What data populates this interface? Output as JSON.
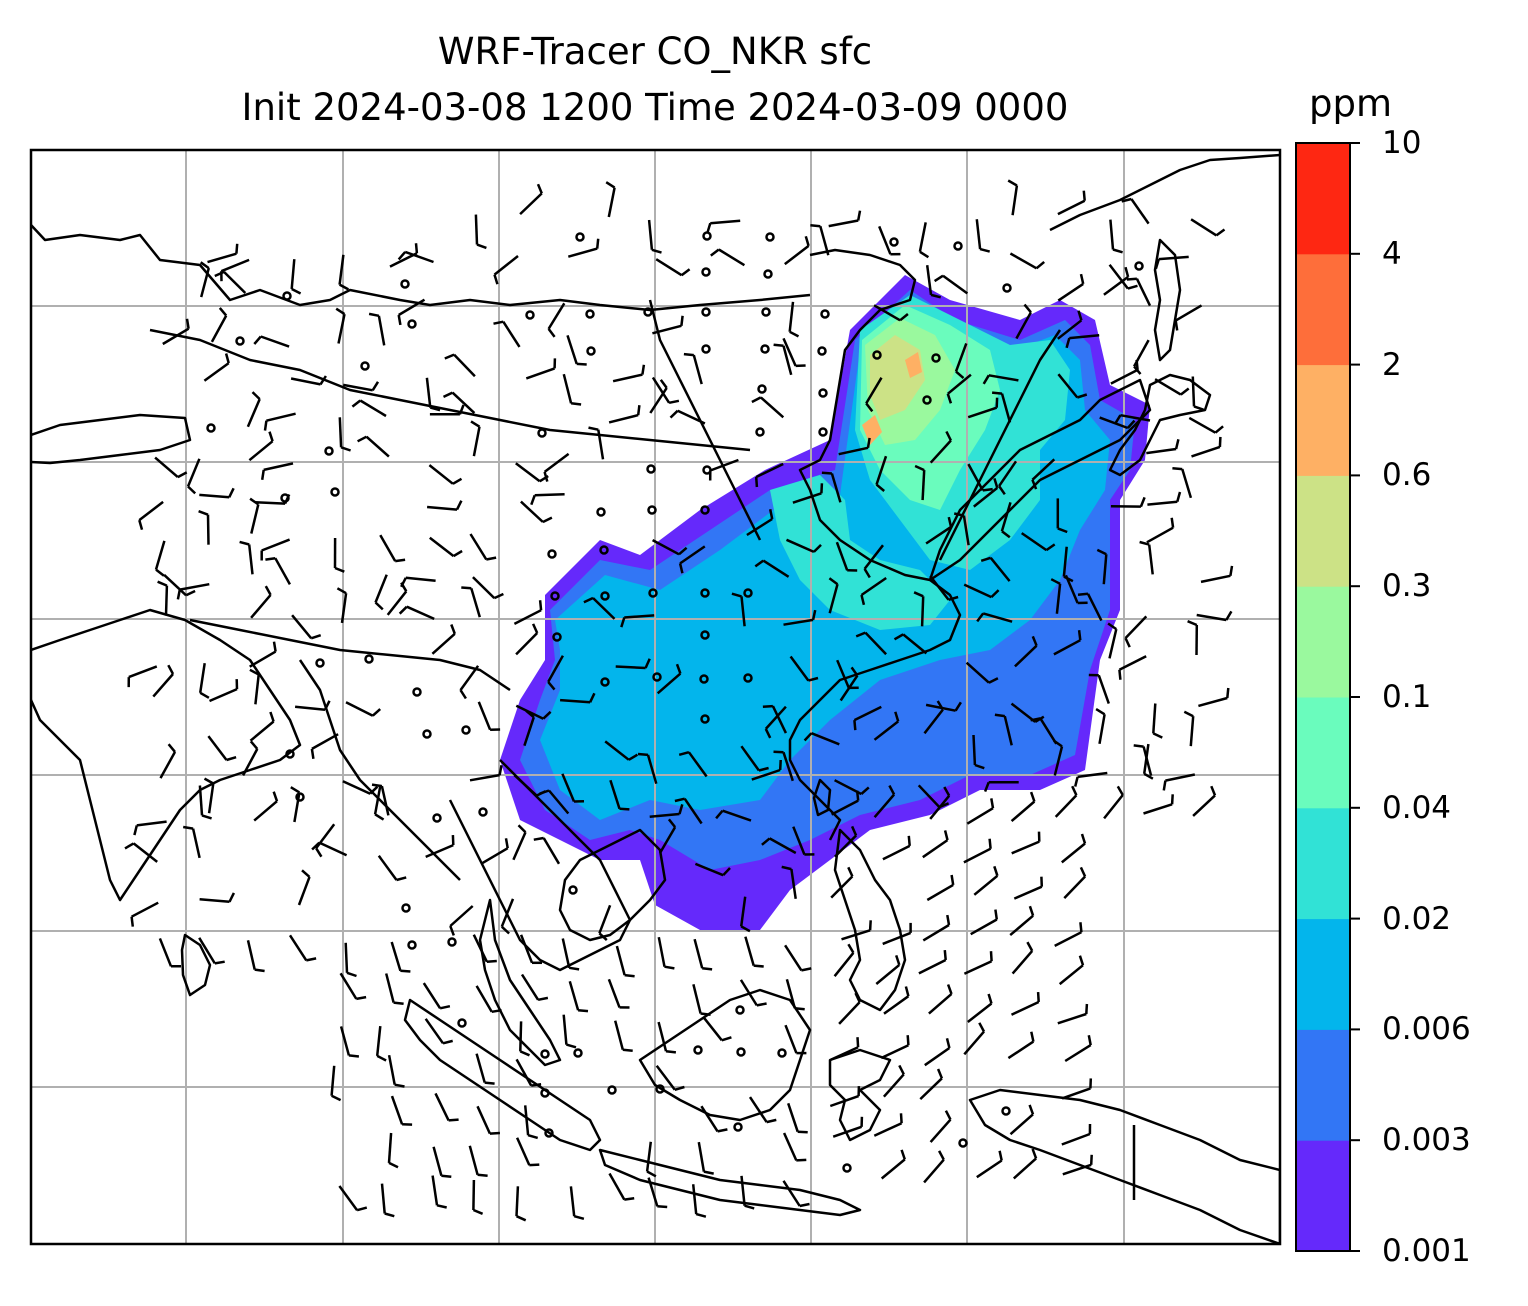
{
  "title": {
    "line1": "WRF-Tracer CO_NKR sfc",
    "line2": "Init 2024-03-08 1200 Time 2024-03-09 0000"
  },
  "colorbar": {
    "unit": "ppm",
    "levels": [
      "0.001",
      "0.003",
      "0.006",
      "0.02",
      "0.04",
      "0.1",
      "0.3",
      "0.6",
      "2",
      "4",
      "10"
    ],
    "colors": [
      "#6529fb",
      "#3276f5",
      "#03b5ec",
      "#31e2d6",
      "#6afcbd",
      "#9af99e",
      "#cce286",
      "#feb064",
      "#fe6e3a",
      "#fe2712"
    ]
  },
  "map": {
    "field": "CO_NKR",
    "level": "sfc",
    "gridlines": true
  }
}
